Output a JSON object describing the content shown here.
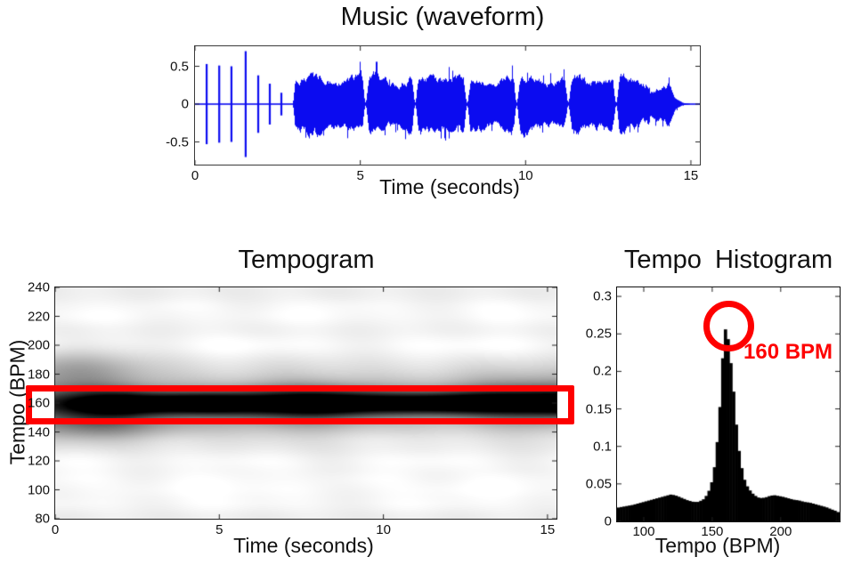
{
  "figure": {
    "background": "#ffffff",
    "annotation_red": "#fe0000",
    "waveform_blue": "#0b0bf0"
  },
  "chart_data": [
    {
      "id": "waveform",
      "type": "line",
      "title": "Music (waveform)",
      "xlabel": "Time (seconds)",
      "xlim": [
        0,
        15.27
      ],
      "ylim": [
        -0.79,
        0.77
      ],
      "xticks": [
        0,
        5,
        10,
        15
      ],
      "xtick_labels": [
        "0",
        "5",
        "10",
        "15"
      ],
      "yticks": [
        0.5,
        0,
        -0.5
      ],
      "ytick_labels": [
        "0.5",
        "0",
        "-0.5"
      ],
      "grid": false,
      "line_color": "#0b0bf0",
      "clicks": [
        [
          0.35,
          0.53
        ],
        [
          0.73,
          0.51
        ],
        [
          1.1,
          0.5
        ],
        [
          1.53,
          0.7
        ],
        [
          1.91,
          0.38
        ],
        [
          2.26,
          0.27
        ],
        [
          2.61,
          0.15
        ]
      ],
      "music": {
        "start": 2.95,
        "full_end": 13.75,
        "soft_end": 14.35,
        "fade_tau": 0.16,
        "base_amp": 0.335,
        "soft_amp": 0.21,
        "max_amp": 0.56,
        "swell_period": 1.53,
        "dips": [
          5.15,
          6.65,
          8.22,
          9.72,
          11.28,
          12.73
        ],
        "dip_width": 0.055,
        "seed": 7
      }
    },
    {
      "id": "tempogram",
      "type": "heatmap",
      "title": "Tempogram",
      "xlabel": "Time (seconds)",
      "ylabel": "Tempo (BPM)",
      "xlim": [
        0,
        15.3
      ],
      "ylim": [
        80,
        240
      ],
      "xticks": [
        0,
        5,
        10,
        15
      ],
      "xtick_labels": [
        "0",
        "5",
        "10",
        "15"
      ],
      "yticks": [
        240,
        220,
        200,
        180,
        160,
        140,
        120,
        100,
        80
      ],
      "ytick_labels": [
        "240",
        "220",
        "200",
        "180",
        "160",
        "140",
        "120",
        "100",
        "80"
      ],
      "colormap": "inverted-gray",
      "background_level": 0.93,
      "main_band": {
        "bpm": 160,
        "sigma": 6.2,
        "skirt_factor": 2.3,
        "skirt_depth": 0.26,
        "min_intensity": 0.55,
        "ramp_time": 2.2
      },
      "light_streaks": [
        [
          220,
          0.06,
          5,
          6.5,
          0.5
        ],
        [
          200,
          0.08,
          6,
          7.0,
          2.6
        ],
        [
          120,
          0.07,
          6,
          5.5,
          1.2
        ],
        [
          100,
          0.07,
          5,
          8.0,
          4.0
        ],
        [
          90,
          0.05,
          4,
          6.0,
          2.2
        ],
        [
          135,
          0.035,
          4,
          7.0,
          5.5
        ],
        [
          228,
          0.04,
          4,
          5.0,
          3.3
        ],
        [
          108,
          0.04,
          4,
          4.5,
          0.9
        ]
      ],
      "dark_hazes": [
        [
          183,
          10,
          0.6,
          1.8,
          0.22
        ],
        [
          145,
          8,
          1.2,
          1.7,
          0.26
        ],
        [
          150,
          12,
          4.5,
          3.5,
          0.06
        ],
        [
          172,
          9,
          14.8,
          2.5,
          0.1
        ]
      ],
      "annotation": {
        "type": "rect",
        "bpm_range": [
          145,
          172
        ],
        "time_range": [
          0,
          15.3
        ],
        "color": "#fe0000"
      }
    },
    {
      "id": "tempo_histogram",
      "type": "bar",
      "title": "Tempo Histogram",
      "xlabel": "Tempo (BPM)",
      "xlim": [
        80.5,
        243
      ],
      "ylim": [
        0,
        0.312
      ],
      "xticks": [
        100,
        150,
        200
      ],
      "xtick_labels": [
        "100",
        "150",
        "200"
      ],
      "yticks": [
        0,
        0.05,
        0.1,
        0.15,
        0.2,
        0.25,
        0.3
      ],
      "ytick_labels": [
        "0",
        "0.05",
        "0.1",
        "0.15",
        "0.2",
        "0.25",
        "0.3"
      ],
      "bar_color": "#000000",
      "bar_width_bpm": 2,
      "data": {
        "bpm": [
          80,
          86,
          92,
          98,
          104,
          110,
          116,
          120,
          124,
          128,
          132,
          136,
          140,
          144,
          147,
          150,
          152,
          154,
          156,
          157,
          158,
          159,
          160,
          161,
          162,
          163,
          164,
          165,
          166,
          167,
          168,
          169,
          170,
          171,
          172,
          174,
          176,
          178,
          180,
          183,
          186,
          189,
          192,
          195,
          198,
          201,
          205,
          209,
          213,
          217,
          221,
          225,
          229,
          233,
          237,
          240,
          242
        ],
        "value": [
          0.018,
          0.02,
          0.022,
          0.025,
          0.028,
          0.031,
          0.034,
          0.036,
          0.034,
          0.031,
          0.028,
          0.026,
          0.026,
          0.03,
          0.038,
          0.055,
          0.078,
          0.115,
          0.165,
          0.2,
          0.235,
          0.25,
          0.262,
          0.25,
          0.236,
          0.22,
          0.202,
          0.184,
          0.162,
          0.14,
          0.118,
          0.1,
          0.088,
          0.076,
          0.066,
          0.052,
          0.045,
          0.04,
          0.036,
          0.032,
          0.031,
          0.032,
          0.034,
          0.035,
          0.034,
          0.033,
          0.031,
          0.029,
          0.028,
          0.026,
          0.025,
          0.023,
          0.021,
          0.019,
          0.016,
          0.014,
          0.012
        ]
      },
      "annotation": {
        "label": "160 BPM",
        "circle_bpm": 160,
        "circle_value": 0.26,
        "color": "#fe0000"
      }
    }
  ]
}
